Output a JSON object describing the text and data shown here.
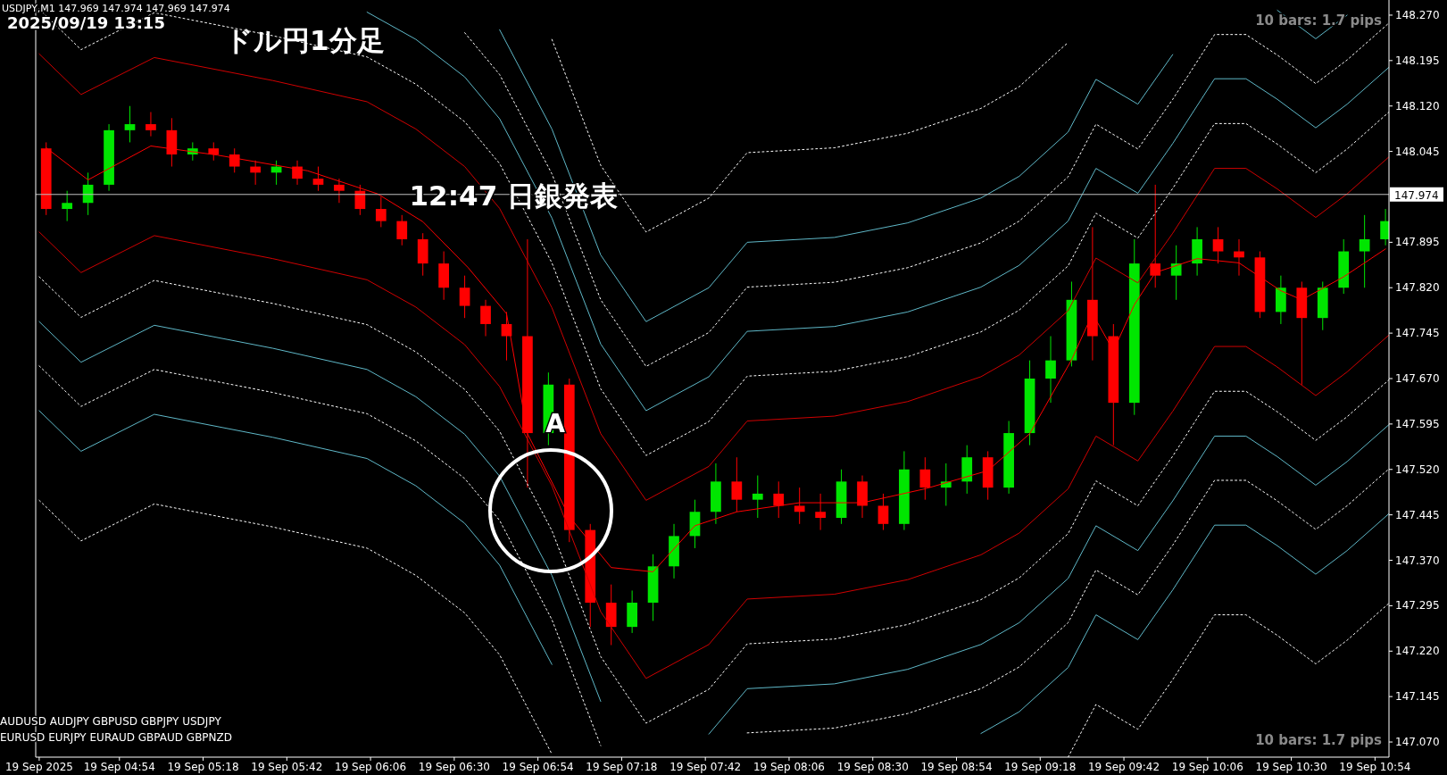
{
  "chart_data": {
    "type": "candlestick",
    "title": "ドル円1分足",
    "annotations": [
      "USDJPY,M1  147.969 147.974 147.969 147.974",
      "2025/09/19 13:15",
      {
        "text": "12:47 日銀発表",
        "x": "2025-09-19T06:47",
        "y": 147.974
      },
      "A",
      "10 bars: 1.7 pips",
      "10 bars: 1.7 pips",
      "AUDUSD AUDJPY  GBPUSD GBPJPY  USDJPY",
      "EURUSD EURJPY  EURAUD GBPAUD GBPNZD"
    ],
    "x": [
      "2025-09-19T04:33",
      "2025-09-19T04:39",
      "2025-09-19T04:45",
      "2025-09-19T04:51",
      "2025-09-19T04:57",
      "2025-09-19T05:03",
      "2025-09-19T05:09",
      "2025-09-19T05:15",
      "2025-09-19T05:21",
      "2025-09-19T05:27",
      "2025-09-19T05:33",
      "2025-09-19T05:39",
      "2025-09-19T05:45",
      "2025-09-19T05:51",
      "2025-09-19T05:57",
      "2025-09-19T06:03",
      "2025-09-19T06:09",
      "2025-09-19T06:15",
      "2025-09-19T06:21",
      "2025-09-19T06:27",
      "2025-09-19T06:33",
      "2025-09-19T06:39",
      "2025-09-19T06:45",
      "2025-09-19T06:51",
      "2025-09-19T06:57",
      "2025-09-19T07:03",
      "2025-09-19T07:09",
      "2025-09-19T07:15",
      "2025-09-19T07:21",
      "2025-09-19T07:27",
      "2025-09-19T07:33",
      "2025-09-19T07:39",
      "2025-09-19T07:45",
      "2025-09-19T07:51",
      "2025-09-19T07:57",
      "2025-09-19T08:03",
      "2025-09-19T08:09",
      "2025-09-19T08:15",
      "2025-09-19T08:21",
      "2025-09-19T08:27",
      "2025-09-19T08:33",
      "2025-09-19T08:39",
      "2025-09-19T08:45",
      "2025-09-19T08:51",
      "2025-09-19T08:57",
      "2025-09-19T09:03",
      "2025-09-19T09:09",
      "2025-09-19T09:15",
      "2025-09-19T09:21",
      "2025-09-19T09:27",
      "2025-09-19T09:33",
      "2025-09-19T09:39",
      "2025-09-19T09:45",
      "2025-09-19T09:51",
      "2025-09-19T09:57",
      "2025-09-19T10:03",
      "2025-09-19T10:09",
      "2025-09-19T10:15",
      "2025-09-19T10:21",
      "2025-09-19T10:27",
      "2025-09-19T10:33",
      "2025-09-19T10:39",
      "2025-09-19T10:45",
      "2025-09-19T10:51",
      "2025-09-19T10:57"
    ],
    "ohlc": [
      [
        148.05,
        148.06,
        147.94,
        147.95
      ],
      [
        147.95,
        147.98,
        147.93,
        147.96
      ],
      [
        147.96,
        148.01,
        147.94,
        147.99
      ],
      [
        147.99,
        148.09,
        147.98,
        148.08
      ],
      [
        148.08,
        148.12,
        148.06,
        148.09
      ],
      [
        148.09,
        148.11,
        148.07,
        148.08
      ],
      [
        148.08,
        148.1,
        148.02,
        148.04
      ],
      [
        148.04,
        148.06,
        148.03,
        148.05
      ],
      [
        148.05,
        148.06,
        148.03,
        148.04
      ],
      [
        148.04,
        148.05,
        148.01,
        148.02
      ],
      [
        148.02,
        148.03,
        147.99,
        148.01
      ],
      [
        148.01,
        148.03,
        147.99,
        148.02
      ],
      [
        148.02,
        148.03,
        147.99,
        148.0
      ],
      [
        148.0,
        148.02,
        147.98,
        147.99
      ],
      [
        147.99,
        148.0,
        147.96,
        147.98
      ],
      [
        147.98,
        147.99,
        147.94,
        147.95
      ],
      [
        147.95,
        147.97,
        147.92,
        147.93
      ],
      [
        147.93,
        147.94,
        147.89,
        147.9
      ],
      [
        147.9,
        147.91,
        147.84,
        147.86
      ],
      [
        147.86,
        147.88,
        147.8,
        147.82
      ],
      [
        147.82,
        147.84,
        147.77,
        147.79
      ],
      [
        147.79,
        147.8,
        147.74,
        147.76
      ],
      [
        147.76,
        147.78,
        147.7,
        147.74
      ],
      [
        147.74,
        147.9,
        147.49,
        147.58
      ],
      [
        147.58,
        147.68,
        147.56,
        147.66
      ],
      [
        147.66,
        147.67,
        147.4,
        147.42
      ],
      [
        147.42,
        147.43,
        147.26,
        147.3
      ],
      [
        147.3,
        147.33,
        147.23,
        147.26
      ],
      [
        147.26,
        147.32,
        147.25,
        147.3
      ],
      [
        147.3,
        147.38,
        147.27,
        147.36
      ],
      [
        147.36,
        147.43,
        147.34,
        147.41
      ],
      [
        147.41,
        147.47,
        147.39,
        147.45
      ],
      [
        147.45,
        147.53,
        147.43,
        147.5
      ],
      [
        147.5,
        147.54,
        147.45,
        147.47
      ],
      [
        147.47,
        147.51,
        147.44,
        147.48
      ],
      [
        147.48,
        147.5,
        147.44,
        147.46
      ],
      [
        147.46,
        147.49,
        147.43,
        147.45
      ],
      [
        147.45,
        147.48,
        147.42,
        147.44
      ],
      [
        147.44,
        147.52,
        147.43,
        147.5
      ],
      [
        147.5,
        147.51,
        147.44,
        147.46
      ],
      [
        147.46,
        147.48,
        147.42,
        147.43
      ],
      [
        147.43,
        147.55,
        147.42,
        147.52
      ],
      [
        147.52,
        147.54,
        147.47,
        147.49
      ],
      [
        147.49,
        147.53,
        147.46,
        147.5
      ],
      [
        147.5,
        147.56,
        147.48,
        147.54
      ],
      [
        147.54,
        147.55,
        147.47,
        147.49
      ],
      [
        147.49,
        147.6,
        147.48,
        147.58
      ],
      [
        147.58,
        147.7,
        147.56,
        147.67
      ],
      [
        147.67,
        147.74,
        147.63,
        147.7
      ],
      [
        147.7,
        147.83,
        147.69,
        147.8
      ],
      [
        147.8,
        147.92,
        147.7,
        147.74
      ],
      [
        147.74,
        147.76,
        147.56,
        147.63
      ],
      [
        147.63,
        147.9,
        147.61,
        147.86
      ],
      [
        147.86,
        147.99,
        147.82,
        147.84
      ],
      [
        147.84,
        147.89,
        147.8,
        147.86
      ],
      [
        147.86,
        147.92,
        147.84,
        147.9
      ],
      [
        147.9,
        147.92,
        147.86,
        147.88
      ],
      [
        147.88,
        147.9,
        147.84,
        147.87
      ],
      [
        147.87,
        147.88,
        147.77,
        147.78
      ],
      [
        147.78,
        147.84,
        147.76,
        147.82
      ],
      [
        147.82,
        147.83,
        147.66,
        147.77
      ],
      [
        147.77,
        147.83,
        147.75,
        147.82
      ],
      [
        147.82,
        147.9,
        147.81,
        147.88
      ],
      [
        147.88,
        147.94,
        147.82,
        147.9
      ],
      [
        147.9,
        147.95,
        147.89,
        147.93
      ]
    ],
    "colors": [
      "#ff0000",
      "#00e600",
      "#00e600",
      "#00e600",
      "#00e600",
      "#ff0000",
      "#ff0000",
      "#00e600",
      "#ff0000",
      "#ff0000",
      "#ff0000",
      "#00e600",
      "#ff0000",
      "#ff0000",
      "#ff0000",
      "#ff0000",
      "#ff0000",
      "#ff0000",
      "#ff0000",
      "#ff0000",
      "#ff0000",
      "#ff0000",
      "#ff0000",
      "#ff0000",
      "#00e600",
      "#ff0000",
      "#ff0000",
      "#ff0000",
      "#00e600",
      "#00e600",
      "#00e600",
      "#00e600",
      "#00e600",
      "#ff0000",
      "#00e600",
      "#ff0000",
      "#ff0000",
      "#ff0000",
      "#00e600",
      "#ff0000",
      "#ff0000",
      "#00e600",
      "#ff0000",
      "#00e600",
      "#00e600",
      "#ff0000",
      "#00e600",
      "#00e600",
      "#00e600",
      "#00e600",
      "#ff0000",
      "#ff0000",
      "#00e600",
      "#ff0000",
      "#00e600",
      "#00e600",
      "#ff0000",
      "#ff0000",
      "#ff0000",
      "#00e600",
      "#ff0000",
      "#00e600",
      "#00e600",
      "#00e600",
      "#00e600"
    ],
    "series": [
      {
        "type": "line",
        "color": "#ff0000",
        "line_style": "solid",
        "x": [
          "2025-09-19T04:33",
          "2025-09-19T04:45",
          "2025-09-19T05:03",
          "2025-09-19T05:22",
          "2025-09-19T05:48",
          "2025-09-19T06:08",
          "2025-09-19T06:21",
          "2025-09-19T06:34",
          "2025-09-19T06:45",
          "2025-09-19T06:51",
          "2025-09-19T07:03",
          "2025-09-19T07:15",
          "2025-09-19T07:27",
          "2025-09-19T07:39",
          "2025-09-19T07:51",
          "2025-09-19T08:09",
          "2025-09-19T08:27",
          "2025-09-19T08:45",
          "2025-09-19T09:03",
          "2025-09-19T09:15",
          "2025-09-19T09:27",
          "2025-09-19T09:33",
          "2025-09-19T09:39",
          "2025-09-19T09:45",
          "2025-09-19T09:51",
          "2025-09-19T10:03",
          "2025-09-19T10:15",
          "2025-09-19T10:27",
          "2025-09-19T10:33",
          "2025-09-19T10:45",
          "2025-09-19T10:57"
        ],
        "values": [
          148.051,
          147.998,
          148.054,
          148.039,
          148.013,
          147.975,
          147.929,
          147.853,
          147.777,
          147.579,
          147.442,
          147.358,
          147.351,
          147.427,
          147.45,
          147.465,
          147.465,
          147.488,
          147.518,
          147.579,
          147.701,
          147.777,
          147.716,
          147.792,
          147.845,
          147.868,
          147.861,
          147.815,
          147.8,
          147.838,
          147.884
        ]
      },
      {
        "type": "line",
        "color": "#d00000",
        "line_style": "solid",
        "x": [
          "2025-09-19T04:31",
          "2025-09-19T04:43",
          "2025-09-19T05:04",
          "2025-09-19T05:38",
          "2025-09-19T06:05",
          "2025-09-19T06:19",
          "2025-09-19T06:33",
          "2025-09-19T06:43",
          "2025-09-19T06:58",
          "2025-09-19T07:12",
          "2025-09-19T07:25",
          "2025-09-19T07:43",
          "2025-09-19T07:54",
          "2025-09-19T08:19",
          "2025-09-19T08:40",
          "2025-09-19T09:01",
          "2025-09-19T09:12",
          "2025-09-19T09:26",
          "2025-09-19T09:34",
          "2025-09-19T09:46",
          "2025-09-19T09:56",
          "2025-09-19T10:08",
          "2025-09-19T10:17",
          "2025-09-19T10:26",
          "2025-09-19T10:37",
          "2025-09-19T10:46",
          "2025-09-19T10:58"
        ],
        "values": [
          148.206,
          148.139,
          148.2,
          148.162,
          148.127,
          148.082,
          148.02,
          147.951,
          147.787,
          147.579,
          147.469,
          147.525,
          147.6,
          147.608,
          147.632,
          147.673,
          147.709,
          147.782,
          147.869,
          147.828,
          147.91,
          148.017,
          148.017,
          147.983,
          147.936,
          147.975,
          148.036
        ]
      },
      {
        "type": "line",
        "color": "#d00000",
        "line_style": "solid",
        "x": [
          "2025-09-19T04:31",
          "2025-09-19T04:43",
          "2025-09-19T05:04",
          "2025-09-19T05:38",
          "2025-09-19T06:05",
          "2025-09-19T06:19",
          "2025-09-19T06:33",
          "2025-09-19T06:43",
          "2025-09-19T06:58",
          "2025-09-19T07:12",
          "2025-09-19T07:25",
          "2025-09-19T07:43",
          "2025-09-19T07:54",
          "2025-09-19T08:19",
          "2025-09-19T08:40",
          "2025-09-19T09:01",
          "2025-09-19T09:12",
          "2025-09-19T09:26",
          "2025-09-19T09:34",
          "2025-09-19T09:46",
          "2025-09-19T09:56",
          "2025-09-19T10:08",
          "2025-09-19T10:17",
          "2025-09-19T10:26",
          "2025-09-19T10:37",
          "2025-09-19T10:46",
          "2025-09-19T10:58"
        ],
        "values": [
          147.912,
          147.845,
          147.906,
          147.868,
          147.833,
          147.788,
          147.726,
          147.657,
          147.493,
          147.285,
          147.175,
          147.231,
          147.306,
          147.314,
          147.338,
          147.379,
          147.415,
          147.488,
          147.575,
          147.534,
          147.616,
          147.723,
          147.723,
          147.689,
          147.642,
          147.681,
          147.742
        ]
      },
      {
        "type": "line",
        "color": "#ffffff",
        "line_style": "dotted",
        "x": [
          "2025-09-19T04:31",
          "2025-09-19T04:43",
          "2025-09-19T05:04",
          "2025-09-19T05:38",
          "2025-09-19T06:05",
          "2025-09-19T06:19",
          "2025-09-19T06:33",
          "2025-09-19T06:43",
          "2025-09-19T06:58",
          "2025-09-19T07:12",
          "2025-09-19T07:25",
          "2025-09-19T07:43",
          "2025-09-19T07:54",
          "2025-09-19T08:19",
          "2025-09-19T08:40",
          "2025-09-19T09:01",
          "2025-09-19T09:12",
          "2025-09-19T09:26",
          "2025-09-19T09:34",
          "2025-09-19T09:46",
          "2025-09-19T09:56",
          "2025-09-19T10:08",
          "2025-09-19T10:17",
          "2025-09-19T10:26",
          "2025-09-19T10:37",
          "2025-09-19T10:46",
          "2025-09-19T10:58"
        ],
        "values": [
          148.28,
          148.213,
          148.274,
          148.236,
          148.201,
          148.156,
          148.094,
          148.025,
          147.861,
          147.653,
          147.543,
          147.599,
          147.674,
          147.682,
          147.706,
          147.747,
          147.783,
          147.856,
          147.943,
          147.902,
          147.984,
          148.091,
          148.091,
          148.057,
          148.01,
          148.049,
          148.11
        ]
      },
      {
        "type": "line",
        "color": "#ffffff",
        "line_style": "dotted",
        "x": [
          "2025-09-19T04:31",
          "2025-09-19T04:43",
          "2025-09-19T05:04",
          "2025-09-19T05:38",
          "2025-09-19T06:05",
          "2025-09-19T06:19",
          "2025-09-19T06:33",
          "2025-09-19T06:43",
          "2025-09-19T06:58",
          "2025-09-19T07:12",
          "2025-09-19T07:25",
          "2025-09-19T07:43",
          "2025-09-19T07:54",
          "2025-09-19T08:19",
          "2025-09-19T08:40",
          "2025-09-19T09:01",
          "2025-09-19T09:12",
          "2025-09-19T09:26",
          "2025-09-19T09:34",
          "2025-09-19T09:46",
          "2025-09-19T09:56",
          "2025-09-19T10:08",
          "2025-09-19T10:17",
          "2025-09-19T10:26",
          "2025-09-19T10:37",
          "2025-09-19T10:46",
          "2025-09-19T10:58"
        ],
        "values": [
          147.838,
          147.771,
          147.832,
          147.794,
          147.759,
          147.714,
          147.652,
          147.583,
          147.419,
          147.211,
          147.101,
          147.157,
          147.232,
          147.24,
          147.264,
          147.305,
          147.341,
          147.414,
          147.501,
          147.46,
          147.542,
          147.649,
          147.649,
          147.615,
          147.568,
          147.607,
          147.668
        ]
      },
      {
        "type": "line",
        "color": "#5fb8c8",
        "line_style": "solid",
        "x": [
          "2025-09-19T06:05",
          "2025-09-19T06:19",
          "2025-09-19T06:33",
          "2025-09-19T06:43",
          "2025-09-19T06:58",
          "2025-09-19T07:12",
          "2025-09-19T07:25",
          "2025-09-19T07:43",
          "2025-09-19T07:54",
          "2025-09-19T08:19",
          "2025-09-19T08:40",
          "2025-09-19T09:01",
          "2025-09-19T09:12",
          "2025-09-19T09:26",
          "2025-09-19T09:34",
          "2025-09-19T09:46",
          "2025-09-19T09:56",
          "2025-09-19T10:08",
          "2025-09-19T10:17",
          "2025-09-19T10:26",
          "2025-09-19T10:37",
          "2025-09-19T10:46",
          "2025-09-19T10:58"
        ],
        "values": [
          148.275,
          148.23,
          148.168,
          148.099,
          147.935,
          147.727,
          147.617,
          147.673,
          147.748,
          147.756,
          147.78,
          147.821,
          147.857,
          147.93,
          148.017,
          147.976,
          148.058,
          148.165,
          148.165,
          148.131,
          148.084,
          148.123,
          148.184
        ]
      },
      {
        "type": "line",
        "color": "#5fb8c8",
        "line_style": "solid",
        "x": [
          "2025-09-19T04:31",
          "2025-09-19T04:43",
          "2025-09-19T05:04",
          "2025-09-19T05:38",
          "2025-09-19T06:05",
          "2025-09-19T06:19",
          "2025-09-19T06:33",
          "2025-09-19T06:43",
          "2025-09-19T06:58",
          "2025-09-19T07:12"
        ],
        "values": [
          147.764,
          147.697,
          147.758,
          147.72,
          147.685,
          147.64,
          147.578,
          147.509,
          147.345,
          147.137
        ]
      },
      {
        "type": "line",
        "color": "#5fb8c8",
        "line_style": "solid",
        "x": [
          "2025-09-19T07:43",
          "2025-09-19T07:54",
          "2025-09-19T08:19",
          "2025-09-19T08:40",
          "2025-09-19T09:01",
          "2025-09-19T09:12",
          "2025-09-19T09:26",
          "2025-09-19T09:34",
          "2025-09-19T09:46",
          "2025-09-19T09:56",
          "2025-09-19T10:08",
          "2025-09-19T10:17",
          "2025-09-19T10:26",
          "2025-09-19T10:37",
          "2025-09-19T10:46",
          "2025-09-19T10:58"
        ],
        "values": [
          147.083,
          147.158,
          147.166,
          147.19,
          147.231,
          147.267,
          147.34,
          147.427,
          147.386,
          147.468,
          147.575,
          147.575,
          147.541,
          147.494,
          147.533,
          147.594
        ]
      },
      {
        "type": "line",
        "color": "#ffffff",
        "line_style": "dotted",
        "x": [
          "2025-09-19T06:33",
          "2025-09-19T06:43",
          "2025-09-19T06:58",
          "2025-09-19T07:12",
          "2025-09-19T07:25",
          "2025-09-19T07:43",
          "2025-09-19T07:54",
          "2025-09-19T08:19",
          "2025-09-19T08:40",
          "2025-09-19T09:01",
          "2025-09-19T09:12",
          "2025-09-19T09:26",
          "2025-09-19T09:34",
          "2025-09-19T09:46",
          "2025-09-19T09:56",
          "2025-09-19T10:08",
          "2025-09-19T10:17",
          "2025-09-19T10:26",
          "2025-09-19T10:37",
          "2025-09-19T10:46",
          "2025-09-19T10:58"
        ],
        "values": [
          148.241,
          148.172,
          148.008,
          147.8,
          147.69,
          147.746,
          147.821,
          147.829,
          147.853,
          147.894,
          147.93,
          148.003,
          148.09,
          148.049,
          148.131,
          148.238,
          148.238,
          148.204,
          148.157,
          148.196,
          148.257
        ]
      },
      {
        "type": "line",
        "color": "#ffffff",
        "line_style": "dotted",
        "x": [
          "2025-09-19T04:31",
          "2025-09-19T04:43",
          "2025-09-19T05:04",
          "2025-09-19T05:38",
          "2025-09-19T06:05",
          "2025-09-19T06:19",
          "2025-09-19T06:33",
          "2025-09-19T06:43",
          "2025-09-19T06:58",
          "2025-09-19T07:12"
        ],
        "values": [
          147.691,
          147.624,
          147.685,
          147.647,
          147.612,
          147.567,
          147.505,
          147.436,
          147.272,
          147.064
        ]
      },
      {
        "type": "line",
        "color": "#ffffff",
        "line_style": "dotted",
        "x": [
          "2025-09-19T07:54",
          "2025-09-19T08:19",
          "2025-09-19T08:40",
          "2025-09-19T09:01",
          "2025-09-19T09:12",
          "2025-09-19T09:26",
          "2025-09-19T09:34",
          "2025-09-19T09:46",
          "2025-09-19T09:56",
          "2025-09-19T10:08",
          "2025-09-19T10:17",
          "2025-09-19T10:26",
          "2025-09-19T10:37",
          "2025-09-19T10:46",
          "2025-09-19T10:58"
        ],
        "values": [
          147.085,
          147.093,
          147.117,
          147.158,
          147.194,
          147.267,
          147.354,
          147.313,
          147.395,
          147.502,
          147.502,
          147.468,
          147.421,
          147.46,
          147.521
        ]
      },
      {
        "type": "line",
        "color": "#5fb8c8",
        "line_style": "solid",
        "x": [
          "2025-09-19T06:43",
          "2025-09-19T06:58",
          "2025-09-19T07:12",
          "2025-09-19T07:25",
          "2025-09-19T07:43",
          "2025-09-19T07:54",
          "2025-09-19T08:19",
          "2025-09-19T08:40",
          "2025-09-19T09:01",
          "2025-09-19T09:12",
          "2025-09-19T09:26",
          "2025-09-19T09:34",
          "2025-09-19T09:46",
          "2025-09-19T09:56"
        ],
        "values": [
          148.246,
          148.082,
          147.874,
          147.764,
          147.82,
          147.895,
          147.903,
          147.927,
          147.968,
          148.004,
          148.077,
          148.164,
          148.123,
          148.205
        ]
      },
      {
        "type": "line",
        "color": "#5fb8c8",
        "line_style": "solid",
        "x": [
          "2025-09-19T10:26",
          "2025-09-19T10:37",
          "2025-09-19T10:46"
        ],
        "values": [
          148.278,
          148.231,
          148.27
        ]
      },
      {
        "type": "line",
        "color": "#5fb8c8",
        "line_style": "solid",
        "x": [
          "2025-09-19T04:31",
          "2025-09-19T04:43",
          "2025-09-19T05:04",
          "2025-09-19T05:38",
          "2025-09-19T06:05",
          "2025-09-19T06:19",
          "2025-09-19T06:33",
          "2025-09-19T06:43",
          "2025-09-19T06:58"
        ],
        "values": [
          147.617,
          147.55,
          147.611,
          147.573,
          147.538,
          147.493,
          147.431,
          147.362,
          147.198
        ]
      },
      {
        "type": "line",
        "color": "#5fb8c8",
        "line_style": "solid",
        "x": [
          "2025-09-19T09:01",
          "2025-09-19T09:12",
          "2025-09-19T09:26",
          "2025-09-19T09:34",
          "2025-09-19T09:46",
          "2025-09-19T09:56",
          "2025-09-19T10:08",
          "2025-09-19T10:17",
          "2025-09-19T10:26",
          "2025-09-19T10:37",
          "2025-09-19T10:46",
          "2025-09-19T10:58"
        ],
        "values": [
          147.084,
          147.12,
          147.193,
          147.28,
          147.239,
          147.321,
          147.428,
          147.428,
          147.394,
          147.347,
          147.386,
          147.447
        ]
      },
      {
        "type": "line",
        "color": "#ffffff",
        "line_style": "dotted",
        "x": [
          "2025-09-19T06:58",
          "2025-09-19T07:12",
          "2025-09-19T07:25",
          "2025-09-19T07:43",
          "2025-09-19T07:54",
          "2025-09-19T08:19",
          "2025-09-19T08:40",
          "2025-09-19T09:01",
          "2025-09-19T09:12",
          "2025-09-19T09:26"
        ],
        "values": [
          148.23,
          148.022,
          147.912,
          147.968,
          148.043,
          148.051,
          148.075,
          148.116,
          148.152,
          148.225
        ]
      },
      {
        "type": "line",
        "color": "#ffffff",
        "line_style": "dotted",
        "x": [
          "2025-09-19T04:31",
          "2025-09-19T04:43",
          "2025-09-19T05:04",
          "2025-09-19T05:38",
          "2025-09-19T06:05",
          "2025-09-19T06:19",
          "2025-09-19T06:33",
          "2025-09-19T06:43",
          "2025-09-19T06:58"
        ],
        "values": [
          147.469,
          147.402,
          147.463,
          147.425,
          147.39,
          147.345,
          147.283,
          147.214,
          147.05
        ]
      },
      {
        "type": "line",
        "color": "#ffffff",
        "line_style": "dotted",
        "x": [
          "2025-09-19T09:26",
          "2025-09-19T09:34",
          "2025-09-19T09:46",
          "2025-09-19T09:56",
          "2025-09-19T10:08",
          "2025-09-19T10:17",
          "2025-09-19T10:26",
          "2025-09-19T10:37",
          "2025-09-19T10:46",
          "2025-09-19T10:58"
        ],
        "values": [
          147.045,
          147.132,
          147.091,
          147.173,
          147.28,
          147.28,
          147.246,
          147.199,
          147.238,
          147.299
        ]
      }
    ],
    "ref_lines": [
      {
        "axis": "y",
        "value": 147.974,
        "label": "147.974",
        "color": "#c0c0c0"
      }
    ],
    "xlim": [
      "2025-09-19T04:30",
      "2025-09-19T10:58"
    ],
    "ylim": [
      147.045,
      148.295
    ],
    "xticks": [
      {
        "value": "2025-09-19T04:31",
        "label": "19 Sep 2025"
      },
      {
        "value": "2025-09-19T04:54",
        "label": "19 Sep 04:54"
      },
      {
        "value": "2025-09-19T05:18",
        "label": "19 Sep 05:18"
      },
      {
        "value": "2025-09-19T05:42",
        "label": "19 Sep 05:42"
      },
      {
        "value": "2025-09-19T06:06",
        "label": "19 Sep 06:06"
      },
      {
        "value": "2025-09-19T06:30",
        "label": "19 Sep 06:30"
      },
      {
        "value": "2025-09-19T06:54",
        "label": "19 Sep 06:54"
      },
      {
        "value": "2025-09-19T07:18",
        "label": "19 Sep 07:18"
      },
      {
        "value": "2025-09-19T07:42",
        "label": "19 Sep 07:42"
      },
      {
        "value": "2025-09-19T08:06",
        "label": "19 Sep 08:06"
      },
      {
        "value": "2025-09-19T08:30",
        "label": "19 Sep 08:30"
      },
      {
        "value": "2025-09-19T08:54",
        "label": "19 Sep 08:54"
      },
      {
        "value": "2025-09-19T09:18",
        "label": "19 Sep 09:18"
      },
      {
        "value": "2025-09-19T09:42",
        "label": "19 Sep 09:42"
      },
      {
        "value": "2025-09-19T10:06",
        "label": "19 Sep 10:06"
      },
      {
        "value": "2025-09-19T10:30",
        "label": "19 Sep 10:30"
      },
      {
        "value": "2025-09-19T10:54",
        "label": "19 Sep 10:54"
      }
    ],
    "yticks": [
      {
        "value": 148.27,
        "label": "148.270"
      },
      {
        "value": 148.195,
        "label": "148.195"
      },
      {
        "value": 148.12,
        "label": "148.120"
      },
      {
        "value": 148.045,
        "label": "148.045"
      },
      {
        "value": 147.895,
        "label": "147.895"
      },
      {
        "value": 147.82,
        "label": "147.820"
      },
      {
        "value": 147.745,
        "label": "147.745"
      },
      {
        "value": 147.67,
        "label": "147.670"
      },
      {
        "value": 147.595,
        "label": "147.595"
      },
      {
        "value": 147.52,
        "label": "147.520"
      },
      {
        "value": 147.445,
        "label": "147.445"
      },
      {
        "value": 147.37,
        "label": "147.370"
      },
      {
        "value": 147.295,
        "label": "147.295"
      },
      {
        "value": 147.22,
        "label": "147.220"
      },
      {
        "value": 147.145,
        "label": "147.145"
      },
      {
        "value": 147.07,
        "label": "147.070"
      }
    ]
  }
}
